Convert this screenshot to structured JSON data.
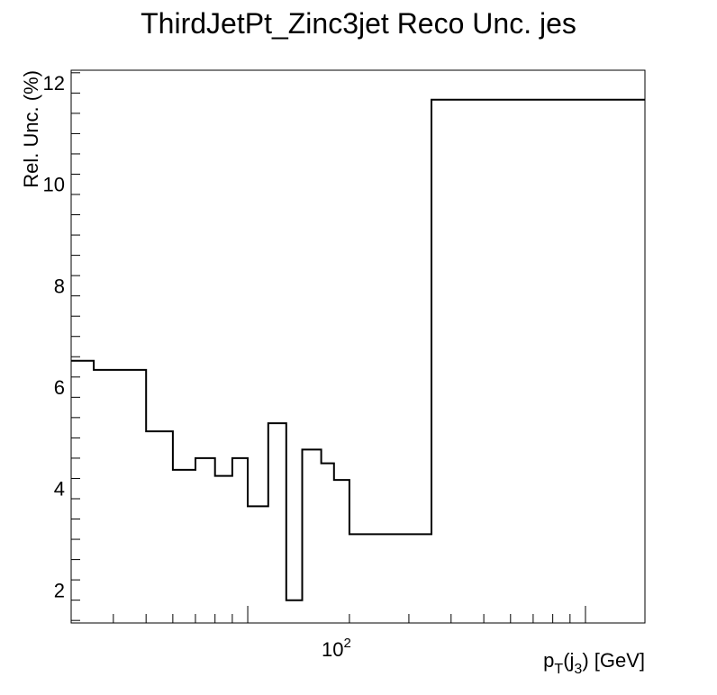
{
  "chart_data": {
    "type": "line",
    "style": "step-histogram",
    "title": "ThirdJetPt_Zinc3jet Reco Unc. jes",
    "ylabel": "Rel. Unc. (%)",
    "xlabel": {
      "p": "p",
      "T": "T",
      "paren_open": "(j",
      "three": "3",
      "rest": ") [GeV]"
    },
    "x_scale": "log",
    "xlim": [
      30,
      1500
    ],
    "ylim": [
      1.35,
      12.25
    ],
    "y_ticks": [
      2,
      4,
      6,
      8,
      10,
      12
    ],
    "y_tick_labels": [
      "2",
      "4",
      "6",
      "8",
      "10",
      "12"
    ],
    "x_tick_label": {
      "base": "10",
      "exp": "2"
    },
    "bin_edges": [
      30,
      35,
      50,
      60,
      70,
      80,
      90,
      100,
      115,
      130,
      145,
      165,
      180,
      200,
      225,
      350,
      1500
    ],
    "values": [
      6.52,
      6.34,
      5.13,
      4.37,
      4.6,
      4.25,
      4.6,
      3.65,
      5.29,
      1.8,
      4.77,
      4.5,
      4.17,
      3.1,
      3.1,
      11.67
    ],
    "grid": false
  }
}
